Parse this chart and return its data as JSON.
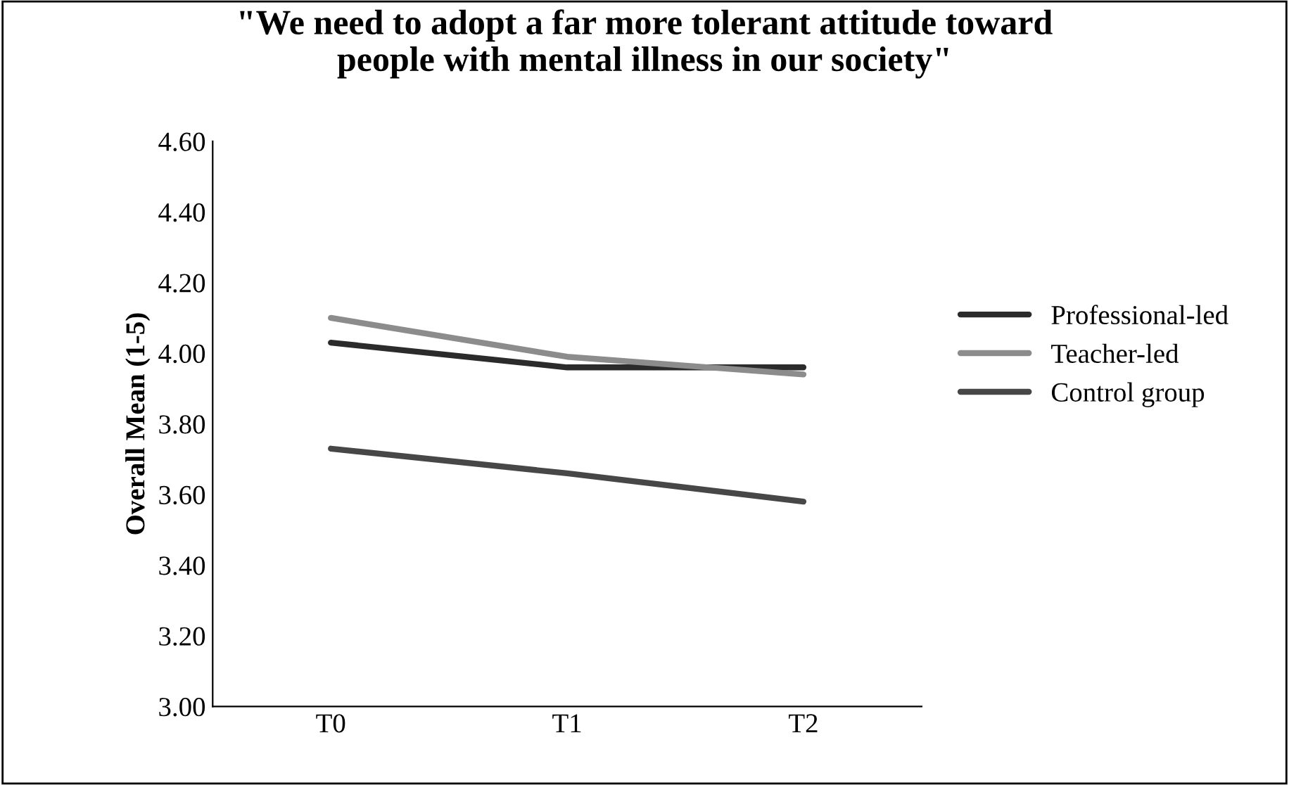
{
  "chart_data": {
    "type": "line",
    "title": "\"We need to adopt a far more tolerant attitude toward\npeople with mental illness in our society\"",
    "ylabel": "Overall Mean (1-5)",
    "categories": [
      "T0",
      "T1",
      "T2"
    ],
    "series": [
      {
        "name": "Professional-led",
        "color": "#2b2b2b",
        "values": [
          4.03,
          3.96,
          3.96
        ]
      },
      {
        "name": "Teacher-led",
        "color": "#8c8c8c",
        "values": [
          4.1,
          3.99,
          3.94
        ]
      },
      {
        "name": "Control group",
        "color": "#474747",
        "values": [
          3.73,
          3.66,
          3.58
        ]
      }
    ],
    "ylim": [
      3.0,
      4.6
    ],
    "yticks": [
      {
        "value": 3.0,
        "label": "3.00"
      },
      {
        "value": 3.2,
        "label": "3.20"
      },
      {
        "value": 3.4,
        "label": "3.40"
      },
      {
        "value": 3.6,
        "label": "3.60"
      },
      {
        "value": 3.8,
        "label": "3.80"
      },
      {
        "value": 4.0,
        "label": "4.00"
      },
      {
        "value": 4.2,
        "label": "4.20"
      },
      {
        "value": 4.4,
        "label": "4.40"
      },
      {
        "value": 4.6,
        "label": "4.60"
      }
    ],
    "legend": "right",
    "grid": false
  }
}
